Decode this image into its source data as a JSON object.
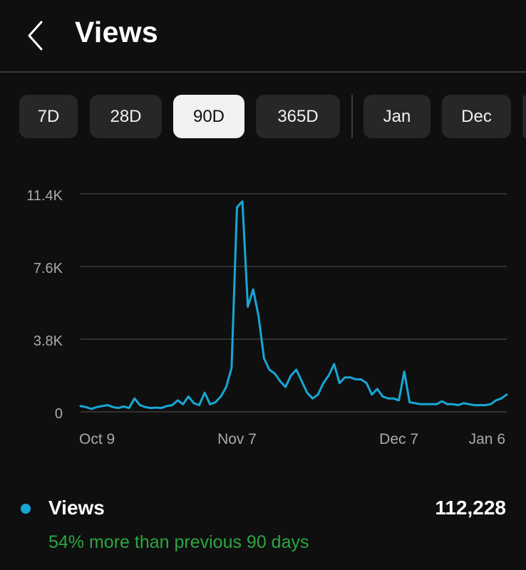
{
  "header": {
    "title": "Views",
    "back_icon": "chevron-left-icon"
  },
  "range_chips": [
    {
      "label": "7D",
      "selected": false
    },
    {
      "label": "28D",
      "selected": false
    },
    {
      "label": "90D",
      "selected": true
    },
    {
      "label": "365D",
      "selected": false
    },
    {
      "label": "Jan",
      "selected": false
    },
    {
      "label": "Dec",
      "selected": false
    }
  ],
  "colors": {
    "series": "#17a7d6",
    "compare_text": "#2ba640",
    "background": "#0f0f0f"
  },
  "chart_data": {
    "type": "line",
    "title": "",
    "xlabel": "",
    "ylabel": "",
    "ylim": [
      0,
      11400
    ],
    "y_ticks": [
      "11.4K",
      "7.6K",
      "3.8K",
      "0"
    ],
    "y_tick_values": [
      11400,
      7600,
      3800,
      0
    ],
    "x_ticks": [
      "Oct 9",
      "Nov 7",
      "Dec 7",
      "Jan 6"
    ],
    "x_tick_days": [
      0,
      29,
      59,
      89
    ],
    "grid": true,
    "series": [
      {
        "name": "Views",
        "values": [
          300,
          250,
          150,
          250,
          300,
          350,
          250,
          200,
          280,
          200,
          700,
          350,
          250,
          200,
          220,
          200,
          300,
          350,
          600,
          400,
          800,
          450,
          350,
          1000,
          400,
          500,
          800,
          1300,
          2300,
          10700,
          11000,
          5500,
          6400,
          5000,
          2800,
          2200,
          2000,
          1600,
          1300,
          1900,
          2200,
          1600,
          1000,
          700,
          900,
          1500,
          1900,
          2500,
          1500,
          1800,
          1800,
          1700,
          1700,
          1500,
          900,
          1200,
          800,
          700,
          700,
          600,
          2100,
          500,
          450,
          400,
          400,
          400,
          400,
          550,
          400,
          400,
          350,
          450,
          400,
          350,
          350,
          350,
          400,
          600,
          700,
          900
        ]
      }
    ]
  },
  "summary": {
    "label": "Views",
    "total": "112,228",
    "comparison": "54% more than previous 90 days"
  }
}
